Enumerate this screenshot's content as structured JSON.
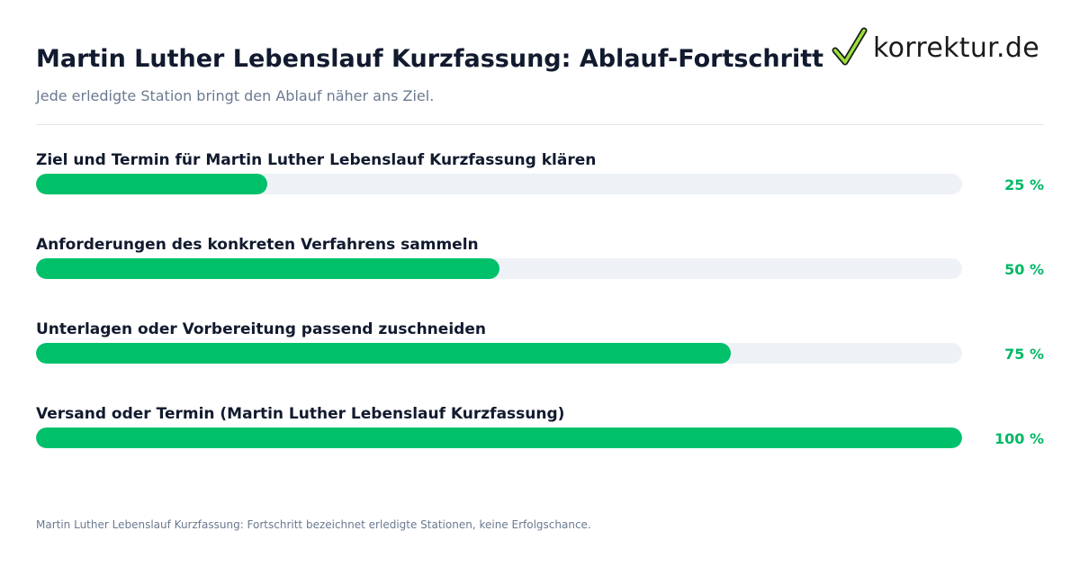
{
  "header": {
    "title": "Martin Luther Lebenslauf Kurzfassung: Ablauf-Fortschritt",
    "subtitle": "Jede erledigte Station bringt den Ablauf näher ans Ziel."
  },
  "logo": {
    "text": "korrektur.de",
    "icon": "checkmark-icon"
  },
  "colors": {
    "accent": "#00c16a",
    "track": "#eef2f7",
    "title": "#111a2e",
    "muted": "#6b7a90"
  },
  "chart_data": {
    "type": "bar",
    "orientation": "horizontal",
    "categories": [
      "Ziel und Termin für Martin Luther Lebenslauf Kurzfassung klären",
      "Anforderungen des konkreten Verfahrens sammeln",
      "Unterlagen oder Vorbereitung passend zuschneiden",
      "Versand oder Termin (Martin Luther Lebenslauf Kurzfassung)"
    ],
    "values": [
      25,
      50,
      75,
      100
    ],
    "value_labels": [
      "25 %",
      "50 %",
      "75 %",
      "100 %"
    ],
    "xlim": [
      0,
      100
    ],
    "grid": false
  },
  "footnote": "Martin Luther Lebenslauf Kurzfassung: Fortschritt bezeichnet erledigte Stationen, keine Erfolgschance."
}
